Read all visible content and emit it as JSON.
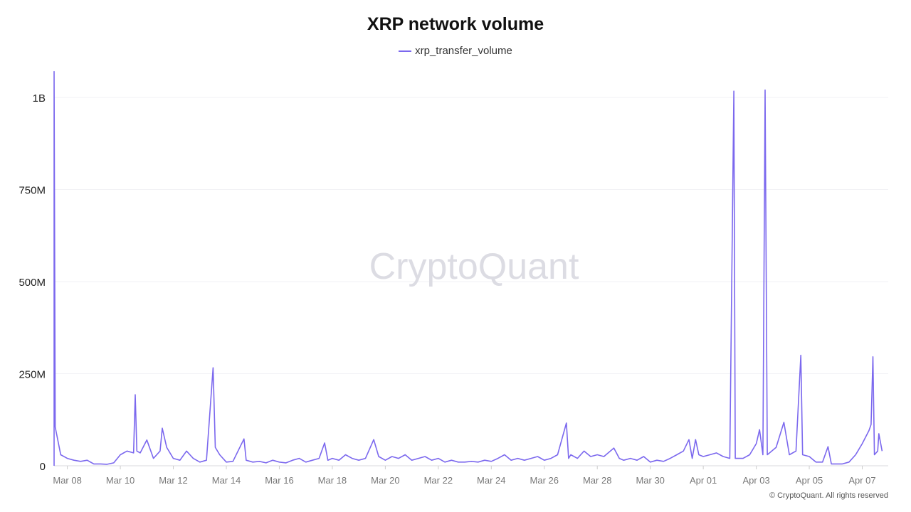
{
  "chart_data": {
    "type": "line",
    "title": "XRP network volume",
    "legend": {
      "entries": [
        "xrp_transfer_volume"
      ],
      "placement": "top-center"
    },
    "xlabel": "",
    "ylabel": "",
    "unit": "millions",
    "ylim": [
      0,
      1070
    ],
    "grid": true,
    "y_ticks": [
      {
        "value": 0,
        "label": "0"
      },
      {
        "value": 250,
        "label": "250M"
      },
      {
        "value": 500,
        "label": "500M"
      },
      {
        "value": 750,
        "label": "750M"
      },
      {
        "value": 1000,
        "label": "1B"
      }
    ],
    "x_ticks": [
      "Mar 08",
      "Mar 10",
      "Mar 12",
      "Mar 14",
      "Mar 16",
      "Mar 18",
      "Mar 20",
      "Mar 22",
      "Mar 24",
      "Mar 26",
      "Mar 28",
      "Mar 30",
      "Apr 01",
      "Apr 03",
      "Apr 05",
      "Apr 07"
    ],
    "color": "#7b68ee",
    "series": [
      {
        "name": "xrp_transfer_volume",
        "points": [
          [
            "Mar 07 12:00",
            1070
          ],
          [
            "Mar 07 13:00",
            105
          ],
          [
            "Mar 07 18:00",
            30
          ],
          [
            "Mar 08 00:00",
            20
          ],
          [
            "Mar 08 06:00",
            15
          ],
          [
            "Mar 08 12:00",
            12
          ],
          [
            "Mar 08 18:00",
            15
          ],
          [
            "Mar 09 00:00",
            5
          ],
          [
            "Mar 09 06:00",
            5
          ],
          [
            "Mar 09 12:00",
            4
          ],
          [
            "Mar 09 18:00",
            8
          ],
          [
            "Mar 10 00:00",
            30
          ],
          [
            "Mar 10 06:00",
            40
          ],
          [
            "Mar 10 12:00",
            35
          ],
          [
            "Mar 10 13:30",
            193
          ],
          [
            "Mar 10 15:00",
            40
          ],
          [
            "Mar 10 18:00",
            35
          ],
          [
            "Mar 11 00:00",
            70
          ],
          [
            "Mar 11 06:00",
            20
          ],
          [
            "Mar 11 12:00",
            40
          ],
          [
            "Mar 11 14:00",
            102
          ],
          [
            "Mar 11 18:00",
            50
          ],
          [
            "Mar 12 00:00",
            20
          ],
          [
            "Mar 12 06:00",
            15
          ],
          [
            "Mar 12 12:00",
            40
          ],
          [
            "Mar 12 18:00",
            20
          ],
          [
            "Mar 13 00:00",
            10
          ],
          [
            "Mar 13 06:00",
            15
          ],
          [
            "Mar 13 12:00",
            266
          ],
          [
            "Mar 13 14:00",
            50
          ],
          [
            "Mar 13 18:00",
            30
          ],
          [
            "Mar 14 00:00",
            10
          ],
          [
            "Mar 14 06:00",
            12
          ],
          [
            "Mar 14 16:00",
            73
          ],
          [
            "Mar 14 18:00",
            15
          ],
          [
            "Mar 15 00:00",
            10
          ],
          [
            "Mar 15 06:00",
            12
          ],
          [
            "Mar 15 12:00",
            8
          ],
          [
            "Mar 15 18:00",
            15
          ],
          [
            "Mar 16 00:00",
            10
          ],
          [
            "Mar 16 06:00",
            8
          ],
          [
            "Mar 16 12:00",
            15
          ],
          [
            "Mar 16 18:00",
            20
          ],
          [
            "Mar 17 00:00",
            10
          ],
          [
            "Mar 17 06:00",
            15
          ],
          [
            "Mar 17 12:00",
            20
          ],
          [
            "Mar 17 17:00",
            62
          ],
          [
            "Mar 17 20:00",
            15
          ],
          [
            "Mar 18 00:00",
            20
          ],
          [
            "Mar 18 06:00",
            15
          ],
          [
            "Mar 18 12:00",
            30
          ],
          [
            "Mar 18 18:00",
            20
          ],
          [
            "Mar 19 00:00",
            15
          ],
          [
            "Mar 19 06:00",
            20
          ],
          [
            "Mar 19 13:30",
            71
          ],
          [
            "Mar 19 18:00",
            25
          ],
          [
            "Mar 20 00:00",
            15
          ],
          [
            "Mar 20 06:00",
            25
          ],
          [
            "Mar 20 12:00",
            20
          ],
          [
            "Mar 20 18:00",
            30
          ],
          [
            "Mar 21 00:00",
            15
          ],
          [
            "Mar 21 06:00",
            20
          ],
          [
            "Mar 21 12:00",
            25
          ],
          [
            "Mar 21 18:00",
            15
          ],
          [
            "Mar 22 00:00",
            20
          ],
          [
            "Mar 22 06:00",
            10
          ],
          [
            "Mar 22 12:00",
            15
          ],
          [
            "Mar 22 18:00",
            10
          ],
          [
            "Mar 23 00:00",
            10
          ],
          [
            "Mar 23 06:00",
            12
          ],
          [
            "Mar 23 12:00",
            10
          ],
          [
            "Mar 23 18:00",
            15
          ],
          [
            "Mar 24 00:00",
            12
          ],
          [
            "Mar 24 06:00",
            20
          ],
          [
            "Mar 24 12:00",
            30
          ],
          [
            "Mar 24 18:00",
            15
          ],
          [
            "Mar 25 00:00",
            20
          ],
          [
            "Mar 25 06:00",
            15
          ],
          [
            "Mar 25 12:00",
            20
          ],
          [
            "Mar 25 18:00",
            25
          ],
          [
            "Mar 26 00:00",
            15
          ],
          [
            "Mar 26 06:00",
            20
          ],
          [
            "Mar 26 12:00",
            30
          ],
          [
            "Mar 26 20:00",
            116
          ],
          [
            "Mar 26 22:00",
            20
          ],
          [
            "Mar 27 00:00",
            30
          ],
          [
            "Mar 27 06:00",
            20
          ],
          [
            "Mar 27 12:00",
            40
          ],
          [
            "Mar 27 18:00",
            25
          ],
          [
            "Mar 28 00:00",
            30
          ],
          [
            "Mar 28 06:00",
            25
          ],
          [
            "Mar 28 15:00",
            48
          ],
          [
            "Mar 28 20:00",
            20
          ],
          [
            "Mar 29 00:00",
            15
          ],
          [
            "Mar 29 06:00",
            20
          ],
          [
            "Mar 29 12:00",
            15
          ],
          [
            "Mar 29 18:00",
            25
          ],
          [
            "Mar 30 00:00",
            10
          ],
          [
            "Mar 30 06:00",
            15
          ],
          [
            "Mar 30 12:00",
            12
          ],
          [
            "Mar 30 18:00",
            20
          ],
          [
            "Mar 31 00:00",
            30
          ],
          [
            "Mar 31 06:00",
            40
          ],
          [
            "Mar 31 11:00",
            71
          ],
          [
            "Mar 31 14:00",
            20
          ],
          [
            "Mar 31 17:00",
            71
          ],
          [
            "Mar 31 20:00",
            30
          ],
          [
            "Apr 01 00:00",
            25
          ],
          [
            "Apr 01 06:00",
            30
          ],
          [
            "Apr 01 12:00",
            35
          ],
          [
            "Apr 01 18:00",
            25
          ],
          [
            "Apr 02 00:00",
            20
          ],
          [
            "Apr 02 03:40",
            1017
          ],
          [
            "Apr 02 05:00",
            20
          ],
          [
            "Apr 02 12:00",
            20
          ],
          [
            "Apr 02 18:00",
            30
          ],
          [
            "Apr 03 00:00",
            60
          ],
          [
            "Apr 03 03:00",
            98
          ],
          [
            "Apr 03 06:00",
            30
          ],
          [
            "Apr 03 08:00",
            1020
          ],
          [
            "Apr 03 10:00",
            30
          ],
          [
            "Apr 03 18:00",
            50
          ],
          [
            "Apr 04 01:00",
            118
          ],
          [
            "Apr 04 06:00",
            30
          ],
          [
            "Apr 04 12:00",
            40
          ],
          [
            "Apr 04 16:20",
            300
          ],
          [
            "Apr 04 18:00",
            30
          ],
          [
            "Apr 05 00:00",
            25
          ],
          [
            "Apr 05 06:00",
            10
          ],
          [
            "Apr 05 12:00",
            10
          ],
          [
            "Apr 05 17:00",
            52
          ],
          [
            "Apr 05 20:00",
            5
          ],
          [
            "Apr 06 00:00",
            5
          ],
          [
            "Apr 06 06:00",
            5
          ],
          [
            "Apr 06 12:00",
            10
          ],
          [
            "Apr 06 18:00",
            30
          ],
          [
            "Apr 07 00:00",
            60
          ],
          [
            "Apr 07 06:00",
            95
          ],
          [
            "Apr 07 08:00",
            112
          ],
          [
            "Apr 07 09:40",
            296
          ],
          [
            "Apr 07 11:00",
            30
          ],
          [
            "Apr 07 14:00",
            40
          ],
          [
            "Apr 07 15:00",
            87
          ],
          [
            "Apr 07 18:00",
            40
          ]
        ]
      }
    ]
  },
  "watermark": "CryptoQuant",
  "copyright": "© CryptoQuant. All rights reserved"
}
